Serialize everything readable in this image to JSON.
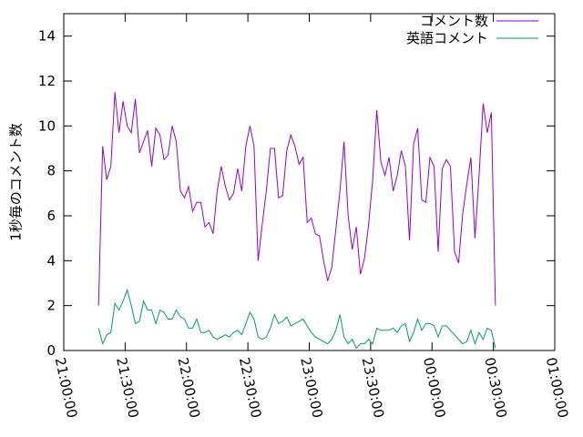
{
  "chart_data": {
    "type": "line",
    "ylabel": "1秒毎のコメント数",
    "x": [
      17,
      19,
      21,
      23,
      25,
      27,
      29,
      31,
      33,
      35,
      37,
      39,
      41,
      43,
      45,
      47,
      49,
      51,
      53,
      55,
      57,
      59,
      61,
      63,
      65,
      67,
      69,
      71,
      73,
      75,
      77,
      79,
      81,
      83,
      85,
      87,
      89,
      91,
      93,
      95,
      97,
      99,
      101,
      103,
      105,
      107,
      109,
      111,
      113,
      115,
      117,
      119,
      121,
      123,
      125,
      127,
      129,
      131,
      133,
      135,
      137,
      139,
      141,
      143,
      145,
      147,
      149,
      151,
      153,
      155,
      157,
      159,
      161,
      163,
      165,
      167,
      169,
      171,
      173,
      175,
      177,
      179,
      181,
      183,
      185,
      187,
      189,
      191,
      193,
      195,
      197,
      199,
      201,
      203,
      205,
      207,
      209,
      211
    ],
    "series": [
      {
        "name": "コメント数",
        "color": "#9400d3",
        "values": [
          2,
          9.1,
          7.6,
          8.2,
          11.5,
          9.7,
          11.1,
          10,
          9.7,
          11.2,
          8.8,
          9.3,
          9.8,
          8.2,
          9.9,
          9.6,
          8.5,
          8.7,
          10,
          9.3,
          7.1,
          6.8,
          7.3,
          6.2,
          6.6,
          6.6,
          5.5,
          5.7,
          5.2,
          7.1,
          8.2,
          7.3,
          6.7,
          7,
          8.1,
          7.1,
          9.1,
          10,
          9.1,
          4,
          5.6,
          7.1,
          9,
          9,
          6.8,
          6.9,
          8.9,
          9.6,
          9.1,
          8.3,
          8.6,
          5.7,
          5.9,
          5.2,
          5.1,
          4,
          3.1,
          3.7,
          5.4,
          7.1,
          9.3,
          6,
          4.5,
          5.5,
          3.4,
          4.1,
          5.6,
          7.6,
          10.7,
          8.4,
          7.8,
          8.6,
          7.1,
          7.8,
          8.9,
          8.2,
          4.9,
          9.2,
          9.9,
          6.7,
          6.6,
          8.6,
          8.2,
          4.4,
          8.1,
          8.5,
          8.2,
          4.4,
          3.9,
          6.1,
          7.4,
          8.6,
          5,
          7.8,
          11,
          9.7,
          10.6,
          2
        ]
      },
      {
        "name": "英語コメント",
        "color": "#009e73",
        "values": [
          1,
          0.3,
          0.7,
          0.8,
          2.1,
          1.8,
          2.2,
          2.7,
          2.0,
          1.2,
          1.3,
          2.2,
          1.8,
          1.8,
          1.2,
          1.8,
          1.7,
          1.4,
          1.4,
          1.8,
          1.5,
          1.4,
          1.0,
          1.0,
          1.4,
          0.8,
          0.8,
          0.9,
          0.6,
          0.5,
          0.6,
          0.7,
          0.6,
          0.8,
          0.9,
          0.7,
          1.2,
          1.7,
          1.4,
          0.6,
          0.5,
          0.6,
          1.0,
          1.6,
          1.2,
          1.3,
          1.5,
          1.1,
          1.2,
          1.3,
          1.4,
          1.1,
          0.8,
          0.6,
          0.5,
          0.4,
          0.3,
          0.5,
          0.9,
          1.6,
          0.6,
          0.3,
          0.5,
          0.1,
          0.3,
          0.3,
          0.5,
          0.3,
          1.0,
          0.9,
          0.9,
          0.9,
          1.0,
          0.8,
          1.1,
          1.2,
          0.4,
          0.8,
          1.4,
          0.9,
          1.2,
          1.2,
          1.1,
          0.6,
          1.1,
          1.1,
          0.9,
          0.7,
          0.5,
          0.3,
          0.4,
          0.9,
          0.3,
          0.8,
          0.5,
          1.0,
          0.9,
          0.1
        ]
      }
    ],
    "xlim": [
      0,
      240
    ],
    "xticks": [
      {
        "value": 0,
        "label": "21:00:00"
      },
      {
        "value": 30,
        "label": "21:30:00"
      },
      {
        "value": 60,
        "label": "22:00:00"
      },
      {
        "value": 90,
        "label": "22:30:00"
      },
      {
        "value": 120,
        "label": "23:00:00"
      },
      {
        "value": 150,
        "label": "23:30:00"
      },
      {
        "value": 180,
        "label": "00:00:00"
      },
      {
        "value": 210,
        "label": "00:30:00"
      },
      {
        "value": 240,
        "label": "01:00:00"
      }
    ],
    "ylim": [
      0,
      15
    ],
    "yticks": [
      0,
      2,
      4,
      6,
      8,
      10,
      12,
      14
    ],
    "legend": "top-right"
  }
}
